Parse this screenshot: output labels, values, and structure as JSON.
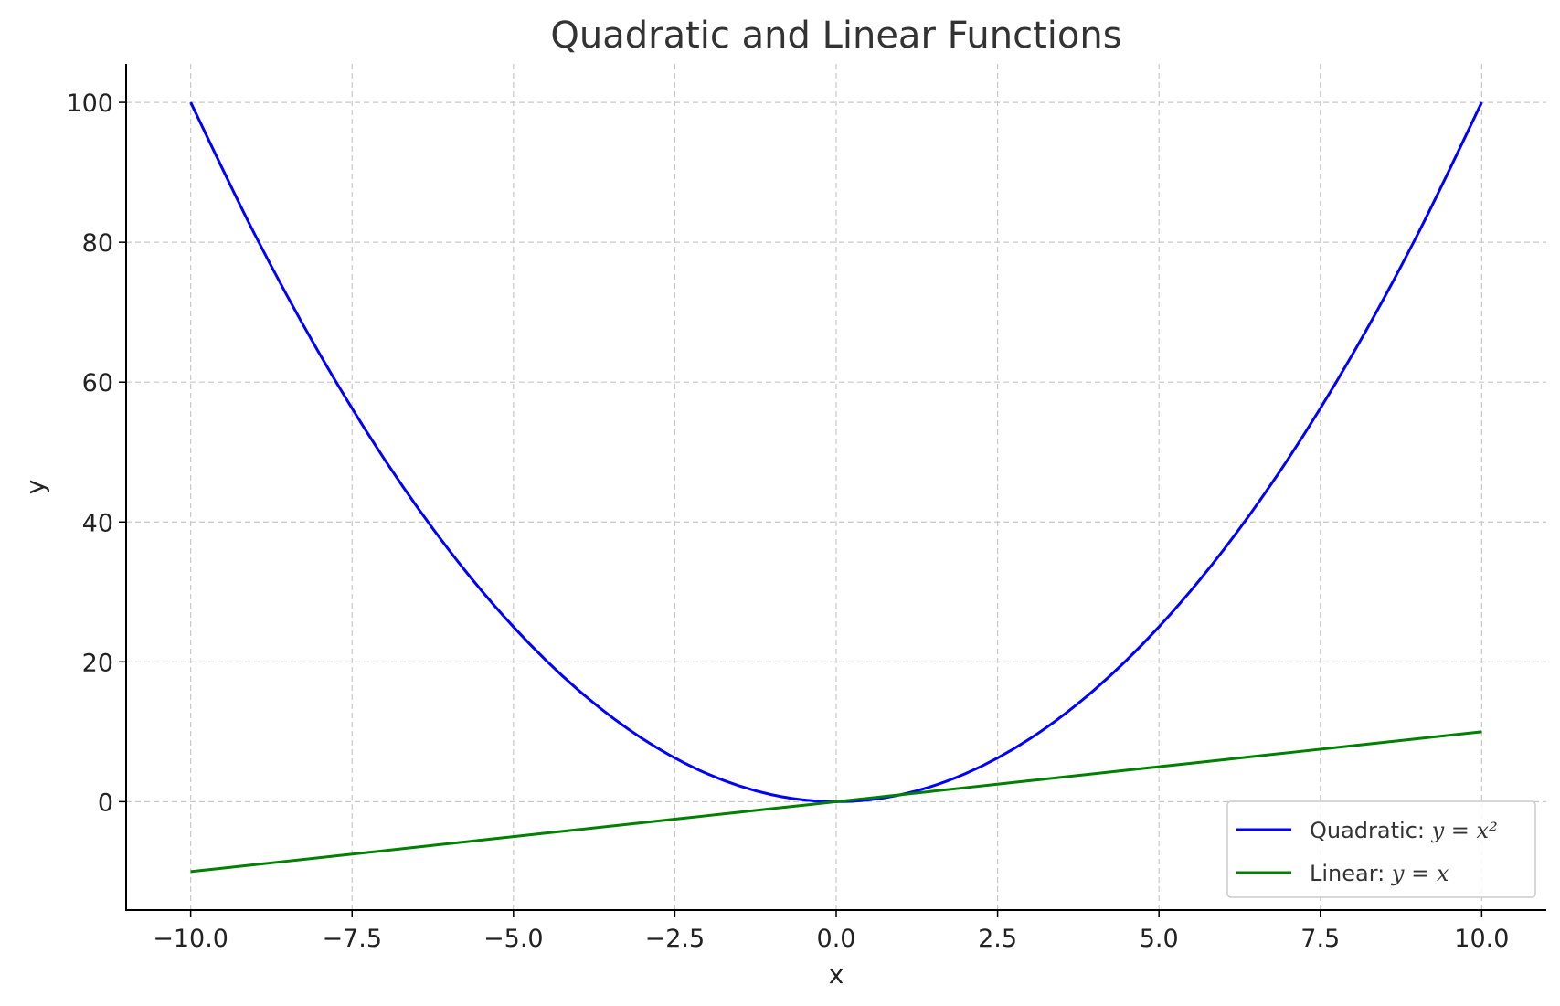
{
  "chart_data": {
    "type": "line",
    "title": "Quadratic and Linear Functions",
    "xlabel": "x",
    "ylabel": "y",
    "xlim": [
      -11,
      11
    ],
    "ylim": [
      -15.5,
      105.5
    ],
    "xticks": [
      -10,
      -7.5,
      -5,
      -2.5,
      0,
      2.5,
      5,
      7.5,
      10
    ],
    "xtick_labels": [
      "−10.0",
      "−7.5",
      "−5.0",
      "−2.5",
      "0.0",
      "2.5",
      "5.0",
      "7.5",
      "10.0"
    ],
    "yticks": [
      0,
      20,
      40,
      60,
      80,
      100
    ],
    "ytick_labels": [
      "0",
      "20",
      "40",
      "60",
      "80",
      "100"
    ],
    "grid": true,
    "legend_position": "bottom-right",
    "x": [
      -10,
      -9,
      -8,
      -7,
      -6,
      -5,
      -4,
      -3,
      -2,
      -1,
      0,
      1,
      2,
      3,
      4,
      5,
      6,
      7,
      8,
      9,
      10
    ],
    "series": [
      {
        "name": "Quadratic: y = x²",
        "legend_prefix": "Quadratic: ",
        "legend_math": "y = x²",
        "color": "#0000ff",
        "values": [
          100,
          81,
          64,
          49,
          36,
          25,
          16,
          9,
          4,
          1,
          0,
          1,
          4,
          9,
          16,
          25,
          36,
          49,
          64,
          81,
          100
        ]
      },
      {
        "name": "Linear: y = x",
        "legend_prefix": "Linear: ",
        "legend_math": "y = x",
        "color": "#008000",
        "values": [
          -10,
          -9,
          -8,
          -7,
          -6,
          -5,
          -4,
          -3,
          -2,
          -1,
          0,
          1,
          2,
          3,
          4,
          5,
          6,
          7,
          8,
          9,
          10
        ]
      }
    ]
  }
}
